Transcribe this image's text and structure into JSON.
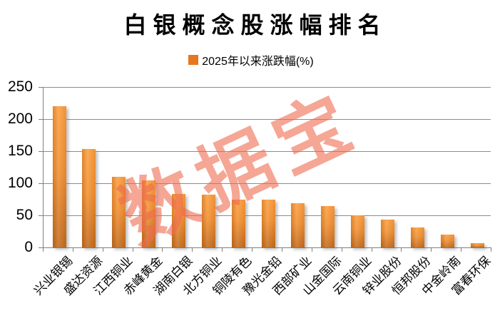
{
  "colors": {
    "bar_top": "#FC9C3C",
    "bar_mid": "#F28E2F",
    "bar_bottom": "#C2691A",
    "legend_swatch": "#E8761E",
    "watermark": "rgba(238,107,78,0.60)",
    "gridline": "#8C8C8C",
    "axis": "#808080",
    "text": "#000000"
  },
  "chart_data": {
    "type": "bar",
    "title": "白银概念股涨幅排名",
    "series_label": "2025年以来涨跌幅(%)",
    "watermark": "数据宝",
    "categories": [
      "兴业银锡",
      "盛达资源",
      "江西铜业",
      "赤峰黄金",
      "湖南白银",
      "北方铜业",
      "铜陵有色",
      "豫光金铅",
      "西部矿业",
      "山金国际",
      "云南铜业",
      "锌业股份",
      "恒邦股份",
      "中金岭南",
      "富春环保"
    ],
    "values": [
      220,
      153,
      110,
      104,
      83,
      82,
      75,
      74,
      69,
      64,
      50,
      43,
      31,
      20,
      7
    ],
    "xlabel": "",
    "ylabel": "",
    "ylim": [
      0,
      250
    ],
    "yticks": [
      0,
      50,
      100,
      150,
      200,
      250
    ],
    "grid": true,
    "legend_position": "top",
    "x_label_rotation_deg": -45
  }
}
